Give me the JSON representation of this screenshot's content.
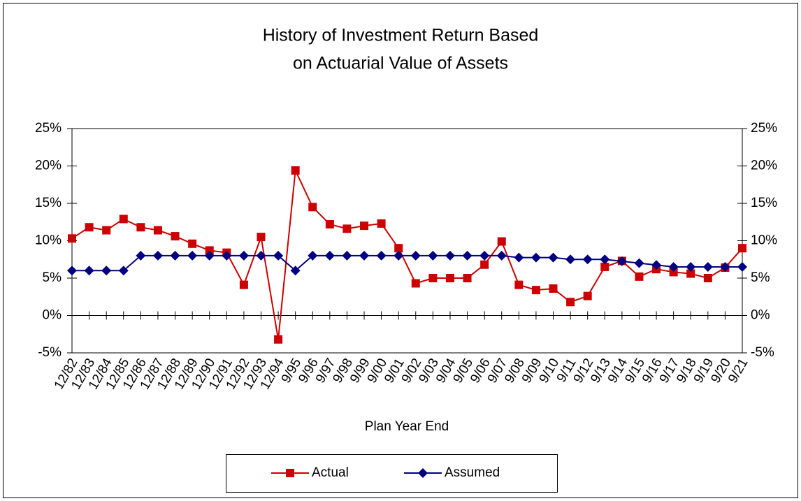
{
  "chart_data": {
    "type": "line",
    "title": [
      "History of Investment Return Based",
      "on Actuarial Value of Assets"
    ],
    "x_label": "Plan Year End",
    "categories": [
      "12/82",
      "12/83",
      "12/84",
      "12/85",
      "12/86",
      "12/87",
      "12/88",
      "12/89",
      "12/90",
      "12/91",
      "12/92",
      "12/93",
      "12/94",
      "9/95",
      "9/96",
      "9/97",
      "9/98",
      "9/99",
      "9/00",
      "9/01",
      "9/02",
      "9/03",
      "9/04",
      "9/05",
      "9/06",
      "9/07",
      "9/08",
      "9/09",
      "9/10",
      "9/11",
      "9/12",
      "9/13",
      "9/14",
      "9/15",
      "9/16",
      "9/17",
      "9/18",
      "9/19",
      "9/20",
      "9/21"
    ],
    "series": [
      {
        "name": "Actual",
        "color": "#cc0000",
        "marker": "square",
        "values": [
          10.3,
          11.8,
          11.4,
          12.9,
          11.8,
          11.4,
          10.6,
          9.6,
          8.7,
          8.4,
          4.1,
          10.5,
          -3.2,
          19.4,
          14.5,
          12.2,
          11.6,
          12.0,
          12.3,
          9.0,
          4.3,
          5.0,
          5.0,
          5.0,
          6.8,
          9.9,
          4.1,
          3.4,
          3.6,
          1.8,
          2.6,
          6.5,
          7.3,
          5.2,
          6.2,
          5.8,
          5.6,
          5.0,
          6.4,
          9.0
        ]
      },
      {
        "name": "Assumed",
        "color": "#000080",
        "marker": "diamond",
        "values": [
          6.0,
          6.0,
          6.0,
          6.0,
          8.0,
          8.0,
          8.0,
          8.0,
          8.0,
          8.0,
          8.0,
          8.0,
          8.0,
          6.0,
          8.0,
          8.0,
          8.0,
          8.0,
          8.0,
          8.0,
          8.0,
          8.0,
          8.0,
          8.0,
          8.0,
          8.0,
          7.75,
          7.75,
          7.75,
          7.5,
          7.5,
          7.5,
          7.25,
          7.0,
          6.75,
          6.5,
          6.5,
          6.5,
          6.5,
          6.5
        ]
      }
    ],
    "ylim": [
      -5,
      25
    ],
    "yticks": [
      {
        "value": -5,
        "label": "-5%"
      },
      {
        "value": 0,
        "label": "0%"
      },
      {
        "value": 5,
        "label": "5%"
      },
      {
        "value": 10,
        "label": "10%"
      },
      {
        "value": 15,
        "label": "15%"
      },
      {
        "value": 20,
        "label": "20%"
      },
      {
        "value": 25,
        "label": "25%"
      }
    ],
    "y2lim": [
      -5,
      25
    ],
    "y2ticks": [
      {
        "value": -5,
        "label": "-5%"
      },
      {
        "value": 0,
        "label": "0%"
      },
      {
        "value": 5,
        "label": "5%"
      },
      {
        "value": 10,
        "label": "10%"
      },
      {
        "value": 15,
        "label": "15%"
      },
      {
        "value": 20,
        "label": "20%"
      },
      {
        "value": 25,
        "label": "25%"
      }
    ],
    "legend": "bottom"
  }
}
